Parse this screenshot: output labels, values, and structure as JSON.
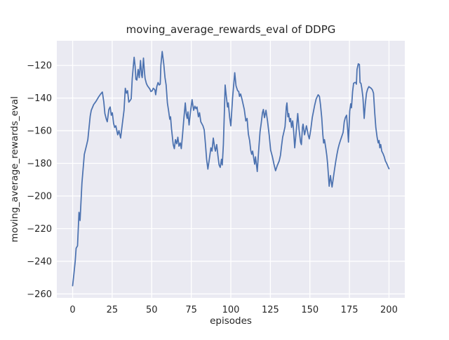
{
  "figure": {
    "background": "#ffffff",
    "plot_background": "#eaeaf2",
    "grid_color": "#ffffff",
    "text_color": "#262626",
    "line_color": "#4c72b0"
  },
  "chart_data": {
    "type": "line",
    "title": "moving_average_rewards_eval of DDPG",
    "xlabel": "episodes",
    "ylabel": "moving_average_rewards_eval",
    "x_ticks": [
      0,
      25,
      50,
      75,
      100,
      125,
      150,
      175,
      200
    ],
    "y_ticks": [
      -120,
      -140,
      -160,
      -180,
      -200,
      -220,
      -240,
      -260
    ],
    "xlim": [
      -10,
      210
    ],
    "ylim": [
      -262.4,
      -104.9
    ],
    "grid": true,
    "legend_position": "none",
    "series": [
      {
        "name": "moving_average_rewards_eval",
        "color": "#4c72b0",
        "points": [
          [
            0,
            -255
          ],
          [
            0.8,
            -248
          ],
          [
            1.6,
            -240
          ],
          [
            2.2,
            -232
          ],
          [
            3.1,
            -230.5
          ],
          [
            4,
            -210
          ],
          [
            4.7,
            -215
          ],
          [
            5.9,
            -192
          ],
          [
            7.4,
            -174.5
          ],
          [
            8.9,
            -168.5
          ],
          [
            9.6,
            -165.5
          ],
          [
            11.1,
            -151
          ],
          [
            11.8,
            -147.5
          ],
          [
            13.3,
            -144
          ],
          [
            14.8,
            -142
          ],
          [
            16.3,
            -139.5
          ],
          [
            17.7,
            -137.5
          ],
          [
            18.8,
            -136.3
          ],
          [
            19.7,
            -142.5
          ],
          [
            20.4,
            -149.5
          ],
          [
            21.3,
            -153
          ],
          [
            21.9,
            -154.5
          ],
          [
            22.9,
            -147
          ],
          [
            23.7,
            -145.5
          ],
          [
            24.4,
            -150.5
          ],
          [
            25.1,
            -149
          ],
          [
            25.9,
            -155.5
          ],
          [
            26.6,
            -158
          ],
          [
            27.3,
            -157
          ],
          [
            28.5,
            -162.5
          ],
          [
            29.3,
            -160
          ],
          [
            30.3,
            -164.5
          ],
          [
            31.8,
            -153
          ],
          [
            32.5,
            -147.5
          ],
          [
            33.3,
            -134
          ],
          [
            34,
            -137
          ],
          [
            34.7,
            -135.5
          ],
          [
            35.5,
            -142.5
          ],
          [
            36.3,
            -141.5
          ],
          [
            37,
            -140.5
          ],
          [
            37.7,
            -128
          ],
          [
            38.9,
            -115
          ],
          [
            39.5,
            -120.5
          ],
          [
            40,
            -128.5
          ],
          [
            40.6,
            -129
          ],
          [
            41.4,
            -122.5
          ],
          [
            42.1,
            -127.5
          ],
          [
            42.9,
            -117
          ],
          [
            43.6,
            -126
          ],
          [
            44,
            -127.5
          ],
          [
            44.8,
            -115.5
          ],
          [
            45.4,
            -124
          ],
          [
            45.8,
            -128
          ],
          [
            46.6,
            -131
          ],
          [
            47.3,
            -132.5
          ],
          [
            48.8,
            -134.5
          ],
          [
            49.5,
            -136
          ],
          [
            50.3,
            -135.5
          ],
          [
            51,
            -134
          ],
          [
            52,
            -135
          ],
          [
            52.5,
            -138
          ],
          [
            53.2,
            -133
          ],
          [
            54,
            -130.5
          ],
          [
            54.7,
            -132
          ],
          [
            55.4,
            -131.5
          ],
          [
            55.8,
            -120
          ],
          [
            56.6,
            -111.5
          ],
          [
            57.6,
            -119
          ],
          [
            58.4,
            -127.5
          ],
          [
            59.1,
            -132
          ],
          [
            59.9,
            -143
          ],
          [
            60.6,
            -147.5
          ],
          [
            61.4,
            -153
          ],
          [
            61.9,
            -151.5
          ],
          [
            62.5,
            -159
          ],
          [
            63.6,
            -168.5
          ],
          [
            64.3,
            -171
          ],
          [
            65,
            -165.5
          ],
          [
            65.8,
            -168
          ],
          [
            66.5,
            -164
          ],
          [
            67.2,
            -169.5
          ],
          [
            68,
            -167.5
          ],
          [
            68.7,
            -171
          ],
          [
            69.5,
            -162.5
          ],
          [
            70.2,
            -154
          ],
          [
            71.2,
            -143
          ],
          [
            71.8,
            -149.5
          ],
          [
            72.4,
            -152.5
          ],
          [
            72.9,
            -148.5
          ],
          [
            73.6,
            -156.5
          ],
          [
            74.5,
            -148.5
          ],
          [
            75.5,
            -141
          ],
          [
            76.5,
            -147.5
          ],
          [
            77.3,
            -145
          ],
          [
            78,
            -146.5
          ],
          [
            78.6,
            -145.5
          ],
          [
            79.5,
            -151.5
          ],
          [
            80.2,
            -149
          ],
          [
            81,
            -154.5
          ],
          [
            82.4,
            -157
          ],
          [
            83.2,
            -159.5
          ],
          [
            84,
            -168.5
          ],
          [
            84.7,
            -177.5
          ],
          [
            85.5,
            -183.5
          ],
          [
            86.7,
            -175.5
          ],
          [
            87.4,
            -170.5
          ],
          [
            88.1,
            -172.5
          ],
          [
            88.9,
            -164.5
          ],
          [
            89.8,
            -170.5
          ],
          [
            90.3,
            -172.5
          ],
          [
            91.1,
            -168.5
          ],
          [
            91.9,
            -175.5
          ],
          [
            92.6,
            -181
          ],
          [
            93.3,
            -182.5
          ],
          [
            94.1,
            -177.5
          ],
          [
            94.6,
            -181
          ],
          [
            95.3,
            -168.5
          ],
          [
            96,
            -146
          ],
          [
            96.4,
            -132
          ],
          [
            97,
            -137.5
          ],
          [
            97.9,
            -145.5
          ],
          [
            98.4,
            -143
          ],
          [
            99.3,
            -152
          ],
          [
            100,
            -157
          ],
          [
            101.1,
            -140
          ],
          [
            102.5,
            -124.5
          ],
          [
            103.3,
            -132.5
          ],
          [
            104.3,
            -135.5
          ],
          [
            105,
            -136
          ],
          [
            105.5,
            -139
          ],
          [
            106.2,
            -137.5
          ],
          [
            107,
            -140.5
          ],
          [
            108.5,
            -147
          ],
          [
            109.5,
            -154
          ],
          [
            110.3,
            -152.5
          ],
          [
            111.1,
            -162
          ],
          [
            111.9,
            -166
          ],
          [
            112.6,
            -172
          ],
          [
            113.2,
            -174.5
          ],
          [
            113.8,
            -172.5
          ],
          [
            115.1,
            -180.5
          ],
          [
            115.6,
            -176
          ],
          [
            116.7,
            -185
          ],
          [
            117.6,
            -172
          ],
          [
            118.5,
            -160.5
          ],
          [
            119.2,
            -155.5
          ],
          [
            120,
            -149
          ],
          [
            120.6,
            -147
          ],
          [
            121.3,
            -152
          ],
          [
            122.2,
            -147.5
          ],
          [
            123.2,
            -154
          ],
          [
            124.3,
            -163
          ],
          [
            125.2,
            -172
          ],
          [
            126.3,
            -176
          ],
          [
            127.3,
            -180.5
          ],
          [
            128.3,
            -184.5
          ],
          [
            129.3,
            -181.5
          ],
          [
            130.6,
            -178.5
          ],
          [
            131.4,
            -175
          ],
          [
            132.1,
            -169
          ],
          [
            132.8,
            -164
          ],
          [
            133.6,
            -160.5
          ],
          [
            134.3,
            -157.5
          ],
          [
            135.1,
            -145.5
          ],
          [
            135.5,
            -143
          ],
          [
            136.1,
            -151.5
          ],
          [
            136.6,
            -149.5
          ],
          [
            137.2,
            -154.5
          ],
          [
            137.8,
            -152.5
          ],
          [
            138.4,
            -158
          ],
          [
            139.1,
            -154
          ],
          [
            139.7,
            -160
          ],
          [
            140.4,
            -170.5
          ],
          [
            141.6,
            -157.5
          ],
          [
            142.3,
            -149.5
          ],
          [
            143.1,
            -159
          ],
          [
            144.1,
            -167
          ],
          [
            144.6,
            -168.5
          ],
          [
            145.3,
            -158
          ],
          [
            145.7,
            -156
          ],
          [
            146.6,
            -162.5
          ],
          [
            147.8,
            -157
          ],
          [
            149,
            -163
          ],
          [
            149.6,
            -165
          ],
          [
            150.5,
            -159.5
          ],
          [
            151.5,
            -152
          ],
          [
            152.3,
            -148
          ],
          [
            153,
            -144.5
          ],
          [
            154,
            -140.5
          ],
          [
            155.2,
            -138
          ],
          [
            156,
            -139
          ],
          [
            156.7,
            -144
          ],
          [
            157.5,
            -152
          ],
          [
            158.2,
            -162.5
          ],
          [
            158.7,
            -167.5
          ],
          [
            159.2,
            -165.5
          ],
          [
            160.1,
            -171
          ],
          [
            160.7,
            -175.5
          ],
          [
            161.2,
            -180.5
          ],
          [
            162.2,
            -194
          ],
          [
            163,
            -187.5
          ],
          [
            164,
            -194.5
          ],
          [
            164.8,
            -189
          ],
          [
            165.6,
            -183.5
          ],
          [
            166.3,
            -179
          ],
          [
            167.1,
            -174.5
          ],
          [
            167.8,
            -171
          ],
          [
            168.5,
            -168.5
          ],
          [
            169.3,
            -166
          ],
          [
            170,
            -164
          ],
          [
            171,
            -161
          ],
          [
            171.7,
            -154.5
          ],
          [
            172.4,
            -152
          ],
          [
            173.2,
            -150.5
          ],
          [
            173.9,
            -159.5
          ],
          [
            174.4,
            -167
          ],
          [
            175.2,
            -148
          ],
          [
            175.8,
            -143.5
          ],
          [
            176.3,
            -146
          ],
          [
            177,
            -136
          ],
          [
            177.6,
            -131
          ],
          [
            178.3,
            -130.5
          ],
          [
            179,
            -130.5
          ],
          [
            179.4,
            -131.5
          ],
          [
            179.8,
            -122.5
          ],
          [
            180.6,
            -119
          ],
          [
            181.3,
            -119.5
          ],
          [
            181.7,
            -130.5
          ],
          [
            182.3,
            -131
          ],
          [
            182.8,
            -134
          ],
          [
            183.5,
            -139.5
          ],
          [
            184.3,
            -152.5
          ],
          [
            185,
            -144
          ],
          [
            185.8,
            -137
          ],
          [
            186.5,
            -134.5
          ],
          [
            187.3,
            -133
          ],
          [
            188,
            -133.5
          ],
          [
            188.7,
            -134
          ],
          [
            189.5,
            -135
          ],
          [
            190.2,
            -137
          ],
          [
            191,
            -149.5
          ],
          [
            191.7,
            -158
          ],
          [
            192.5,
            -164
          ],
          [
            193.2,
            -167.5
          ],
          [
            193.7,
            -166
          ],
          [
            194.2,
            -170.5
          ],
          [
            194.8,
            -168.5
          ],
          [
            195.4,
            -172.5
          ],
          [
            196.2,
            -174
          ],
          [
            197,
            -176
          ],
          [
            197.7,
            -178.5
          ],
          [
            198.5,
            -180
          ],
          [
            199.4,
            -182
          ],
          [
            200,
            -183.3
          ]
        ]
      }
    ]
  }
}
